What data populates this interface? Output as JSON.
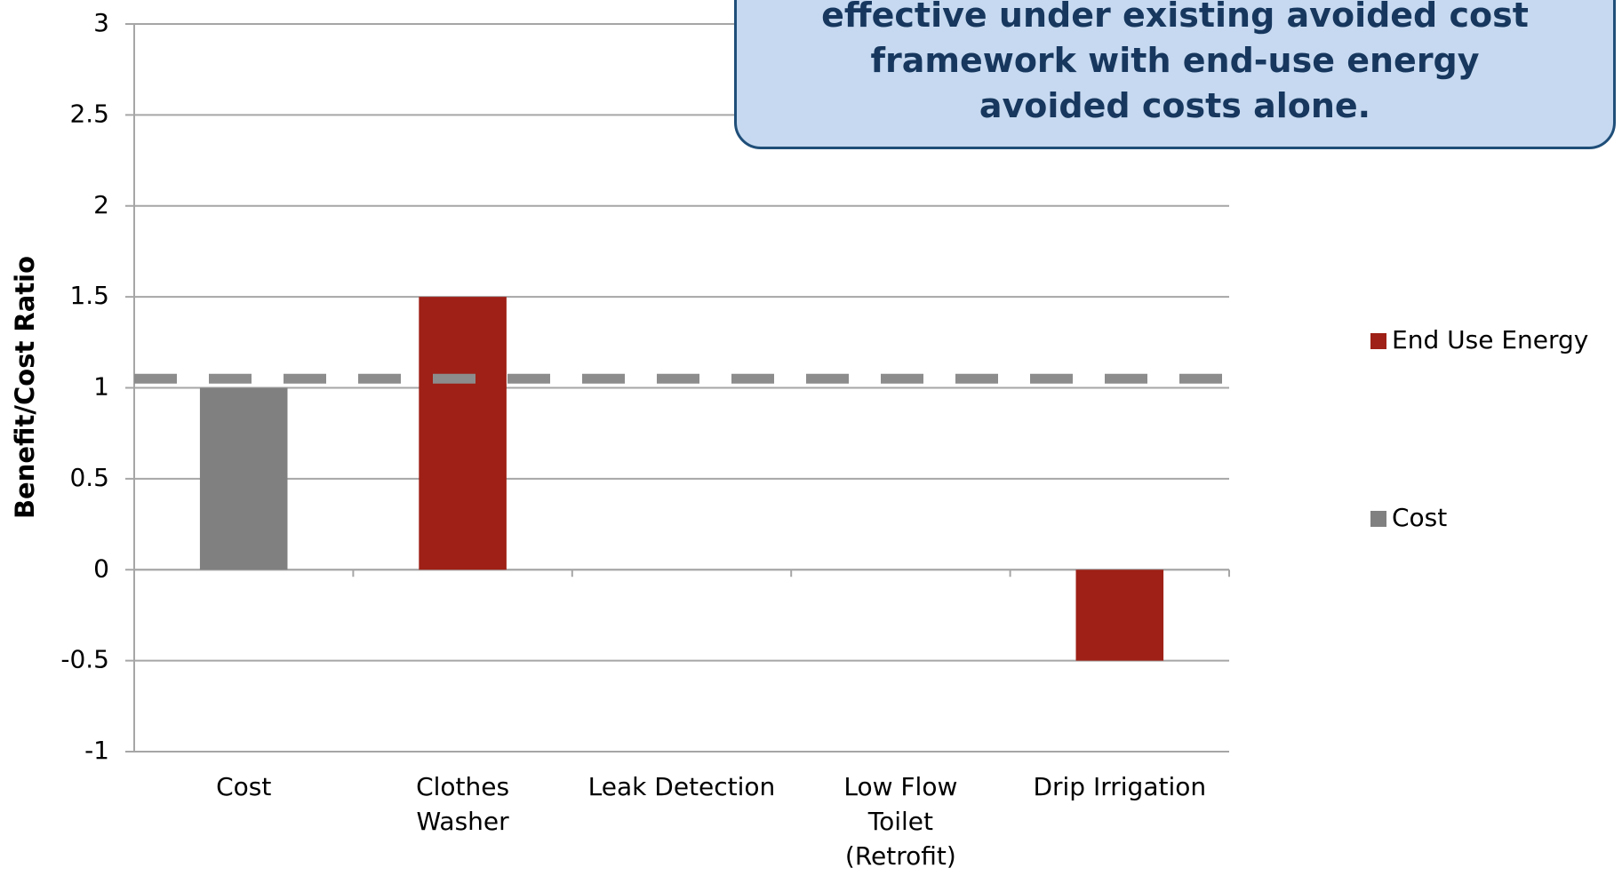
{
  "chart_data": {
    "type": "bar",
    "y_label": "Benefit/Cost Ratio",
    "annotation_lines": [
      "effective under existing avoided cost",
      "framework with end-use energy",
      "avoided costs alone."
    ],
    "categories": [
      "Cost",
      "Clothes\nWasher",
      "Leak Detection",
      "Low Flow\nToilet\n(Retrofit)",
      "Drip Irrigation"
    ],
    "series": [
      {
        "name": "End Use Energy",
        "color": "#9e2016",
        "values": [
          null,
          1.5,
          null,
          null,
          -0.5
        ]
      },
      {
        "name": "Cost",
        "color": "#808080",
        "values": [
          1,
          null,
          null,
          null,
          null
        ]
      }
    ],
    "reference_line": 1.05,
    "ylim": [
      -1,
      3
    ],
    "yticks": [
      -1,
      -0.5,
      0,
      0.5,
      1,
      1.5,
      2,
      2.5,
      3
    ],
    "grid": true
  }
}
